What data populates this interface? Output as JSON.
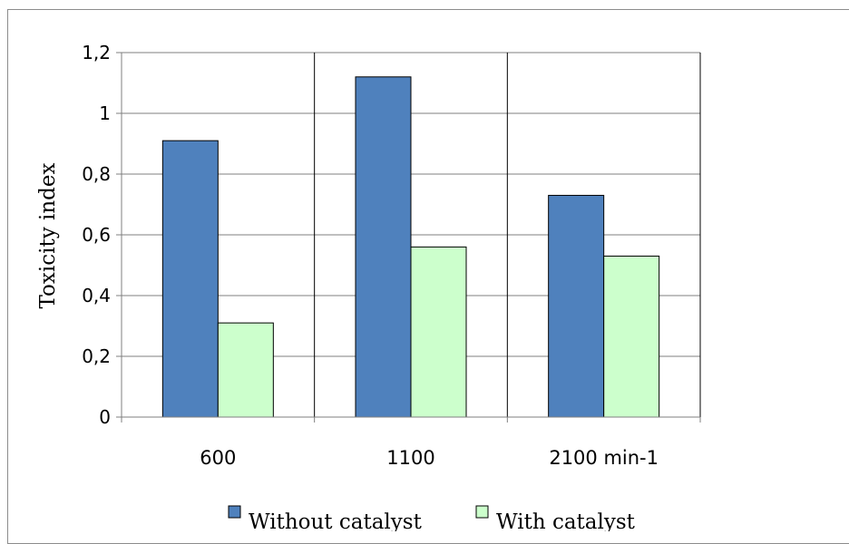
{
  "chart_data": {
    "type": "bar",
    "title": "",
    "xlabel": "",
    "ylabel": "Toxicity index",
    "categories": [
      "600",
      "1100",
      "2100 min-1"
    ],
    "series": [
      {
        "name": "Without catalyst",
        "values": [
          0.91,
          1.12,
          0.73
        ],
        "color": "#4f81bd"
      },
      {
        "name": "With catalyst",
        "values": [
          0.31,
          0.56,
          0.53
        ],
        "color": "#ccffcc"
      }
    ],
    "ylim": [
      0,
      1.2
    ],
    "yticks": [
      "0",
      "0,2",
      "0,4",
      "0,6",
      "0,8",
      "1",
      "1,2"
    ],
    "grid": true,
    "legend_position": "bottom"
  }
}
